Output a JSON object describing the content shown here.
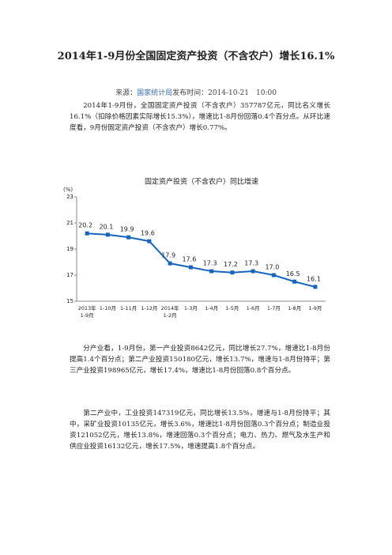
{
  "header": {
    "title": "2014年1-9月份全国固定资产投资（不含农户）增长16.1%",
    "source_label": "来源：",
    "source": "国家统计局",
    "time_label": "发布时间：",
    "time": "2014-10-21　10:00"
  },
  "paragraphs": [
    "2014年1-9月份，全国固定资产投资（不含农户）357787亿元，同比名义增长16.1%（扣除价格因素实际增长15.3%），增速比1-8月份回落0.4个百分点。从环比速度看，9月份固定资产投资（不含农户）增长0.77%。",
    "分产业看，1-9月份，第一产业投资8642亿元，同比增长27.7%，增速比1-8月份提高1.4个百分点；第二产业投资150180亿元，增长13.7%，增速与1-8月份持平；第三产业投资198965亿元，增长17.4%，增速比1-8月份回落0.8个百分点。",
    "第二产业中，工业投资147319亿元，同比增长13.5%，增速与1-8月份持平；其中，采矿业投资10135亿元，增长3.6%，增速比1-8月份回落0.3个百分点；制造业投资121052亿元，增长13.8%，增速回落0.3个百分点；电力、热力、燃气及水生产和供应业投资16132亿元，增长17.5%，增速提高1.8个百分点。"
  ],
  "chart_data": {
    "type": "line",
    "title": "固定资产投资（不含农户）同比增速",
    "y_label": "(%)",
    "categories": [
      "2013年\n1-9月",
      "1-10月",
      "1-11月",
      "1-12月",
      "2014年\n1-2月",
      "1-3月",
      "1-4月",
      "1-5月",
      "1-6月",
      "1-7月",
      "1-8月",
      "1-9月"
    ],
    "values": [
      20.2,
      20.1,
      19.9,
      19.6,
      17.9,
      17.6,
      17.3,
      17.2,
      17.3,
      17.0,
      16.5,
      16.1
    ],
    "value_labels": [
      "20.2",
      "20.1",
      "19.9",
      "19.6",
      "17.9",
      "17.6",
      "17.3",
      "17.2",
      "17.3",
      "17.0",
      "16.5",
      "16.1"
    ],
    "color": "#1565c0",
    "ylim": [
      15,
      23
    ],
    "yticks": [
      15,
      17,
      19,
      21,
      23
    ]
  }
}
